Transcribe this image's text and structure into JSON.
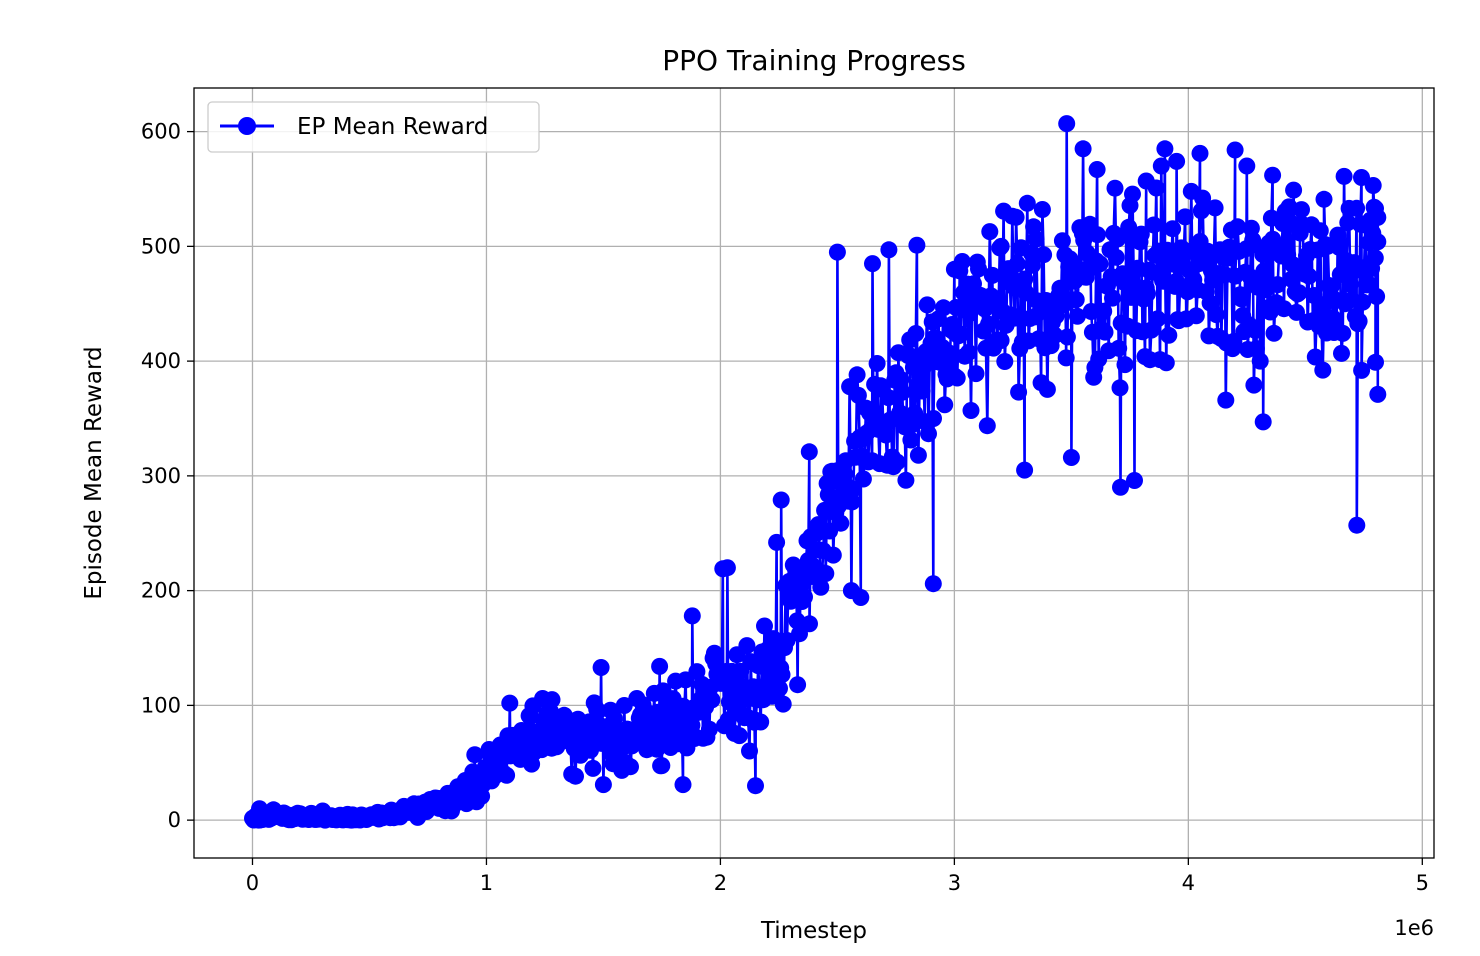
{
  "chart_data": {
    "type": "line",
    "title": "PPO Training Progress",
    "xlabel": "Timestep",
    "ylabel": "Episode Mean Reward",
    "x_multiplier_label": "1e6",
    "xlim": [
      -0.25,
      5.05
    ],
    "ylim": [
      -33,
      638
    ],
    "x_ticks": [
      0,
      1,
      2,
      3,
      4,
      5
    ],
    "y_ticks": [
      0,
      100,
      200,
      300,
      400,
      500,
      600
    ],
    "grid": true,
    "legend_position": "upper-left",
    "series": [
      {
        "name": "EP Mean Reward",
        "color": "#0000ff",
        "marker": "circle",
        "anchors": [
          [
            0.0,
            0
          ],
          [
            0.1,
            4
          ],
          [
            0.2,
            3
          ],
          [
            0.3,
            2
          ],
          [
            0.4,
            2
          ],
          [
            0.5,
            3
          ],
          [
            0.6,
            5
          ],
          [
            0.7,
            10
          ],
          [
            0.8,
            16
          ],
          [
            0.9,
            22
          ],
          [
            1.0,
            40
          ],
          [
            1.1,
            65
          ],
          [
            1.2,
            75
          ],
          [
            1.3,
            72
          ],
          [
            1.4,
            70
          ],
          [
            1.5,
            72
          ],
          [
            1.6,
            74
          ],
          [
            1.7,
            78
          ],
          [
            1.8,
            85
          ],
          [
            1.9,
            100
          ],
          [
            2.0,
            120
          ],
          [
            2.1,
            115
          ],
          [
            2.2,
            120
          ],
          [
            2.3,
            180
          ],
          [
            2.4,
            240
          ],
          [
            2.5,
            280
          ],
          [
            2.6,
            310
          ],
          [
            2.7,
            350
          ],
          [
            2.8,
            370
          ],
          [
            2.9,
            390
          ],
          [
            3.0,
            420
          ],
          [
            3.2,
            440
          ],
          [
            3.4,
            460
          ],
          [
            3.6,
            470
          ],
          [
            3.8,
            470
          ],
          [
            4.0,
            480
          ],
          [
            4.2,
            480
          ],
          [
            4.4,
            470
          ],
          [
            4.6,
            470
          ],
          [
            4.8,
            470
          ]
        ],
        "noise": [
          [
            0.0,
            3
          ],
          [
            0.6,
            4
          ],
          [
            0.9,
            10
          ],
          [
            1.1,
            20
          ],
          [
            1.5,
            25
          ],
          [
            1.9,
            35
          ],
          [
            2.2,
            45
          ],
          [
            2.5,
            60
          ],
          [
            3.0,
            70
          ],
          [
            3.5,
            75
          ],
          [
            4.8,
            70
          ]
        ],
        "peaks": [
          [
            0.03,
            10
          ],
          [
            0.09,
            9
          ],
          [
            0.3,
            8
          ],
          [
            0.95,
            57
          ],
          [
            1.1,
            102
          ],
          [
            1.24,
            106
          ],
          [
            1.28,
            105
          ],
          [
            1.49,
            133
          ],
          [
            1.5,
            31
          ],
          [
            1.74,
            134
          ],
          [
            1.84,
            31
          ],
          [
            1.88,
            178
          ],
          [
            2.01,
            219
          ],
          [
            2.03,
            220
          ],
          [
            2.15,
            30
          ],
          [
            2.26,
            279
          ],
          [
            2.24,
            242
          ],
          [
            2.33,
            118
          ],
          [
            2.38,
            321
          ],
          [
            2.5,
            495
          ],
          [
            2.56,
            200
          ],
          [
            2.6,
            194
          ],
          [
            2.65,
            485
          ],
          [
            2.72,
            497
          ],
          [
            2.84,
            501
          ],
          [
            2.91,
            206
          ],
          [
            3.0,
            480
          ],
          [
            3.2,
            500
          ],
          [
            3.3,
            305
          ],
          [
            3.48,
            607
          ],
          [
            3.5,
            316
          ],
          [
            3.55,
            585
          ],
          [
            3.61,
            567
          ],
          [
            3.71,
            290
          ],
          [
            3.77,
            296
          ],
          [
            3.82,
            557
          ],
          [
            3.9,
            585
          ],
          [
            3.95,
            574
          ],
          [
            4.05,
            581
          ],
          [
            4.2,
            584
          ],
          [
            4.25,
            570
          ],
          [
            4.16,
            366
          ],
          [
            4.32,
            347
          ],
          [
            4.36,
            562
          ],
          [
            4.45,
            549
          ],
          [
            4.58,
            541
          ],
          [
            4.72,
            257
          ],
          [
            4.74,
            560
          ],
          [
            4.79,
            553
          ],
          [
            4.8,
            533
          ],
          [
            4.8,
            399
          ],
          [
            4.81,
            371
          ],
          [
            4.81,
            504
          ]
        ],
        "n_points": 900,
        "x_end": 4.81
      }
    ]
  }
}
